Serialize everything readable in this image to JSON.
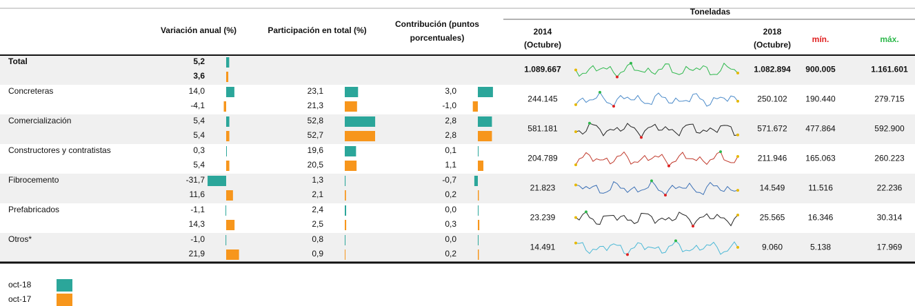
{
  "header": {
    "variacion": "Variación anual (%)",
    "participacion": "Participación en total (%)",
    "contribucion_1": "Contribución (puntos",
    "contribucion_2": "porcentuales)",
    "toneladas": "Toneladas",
    "y2014": "2014",
    "y2014_sub": "(Octubre)",
    "y2018": "2018",
    "y2018_sub": "(Octubre)",
    "min": "mín.",
    "max": "máx."
  },
  "colors": [
    "#2ba69a",
    "#f7961c"
  ],
  "legend": [
    "oct-18",
    "oct-17"
  ],
  "rows": [
    {
      "name": "Total",
      "variacion": {
        "values": [
          5.2,
          3.6
        ],
        "value_labels": [
          "5,2",
          "3,6"
        ]
      },
      "t2014": "1.089.667",
      "t2018": "1.082.894",
      "min": "900.005",
      "max": "1.161.601",
      "spark_color": "#2db84b"
    },
    {
      "name": "Concreteras",
      "variacion": {
        "values": [
          14.0,
          -4.1
        ],
        "value_labels": [
          "14,0",
          "-4,1"
        ]
      },
      "participacion": {
        "values": [
          23.1,
          21.3
        ],
        "value_labels": [
          "23,1",
          "21,3"
        ]
      },
      "contribucion": {
        "values": [
          3.0,
          -1.0
        ],
        "value_labels": [
          "3,0",
          "-1,0"
        ]
      },
      "t2014": "244.145",
      "t2018": "250.102",
      "min": "190.440",
      "max": "279.715",
      "spark_color": "#4a8ac9"
    },
    {
      "name": "Comercialización",
      "variacion": {
        "values": [
          5.4,
          5.4
        ],
        "value_labels": [
          "5,4",
          "5,4"
        ]
      },
      "participacion": {
        "values": [
          52.8,
          52.7
        ],
        "value_labels": [
          "52,8",
          "52,7"
        ]
      },
      "contribucion": {
        "values": [
          2.8,
          2.8
        ],
        "value_labels": [
          "2,8",
          "2,8"
        ]
      },
      "t2014": "581.181",
      "t2018": "571.672",
      "min": "477.864",
      "max": "592.900",
      "spark_color": "#222222"
    },
    {
      "name": "Constructores y contratistas",
      "variacion": {
        "values": [
          0.3,
          5.4
        ],
        "value_labels": [
          "0,3",
          "5,4"
        ]
      },
      "participacion": {
        "values": [
          19.6,
          20.5
        ],
        "value_labels": [
          "19,6",
          "20,5"
        ]
      },
      "contribucion": {
        "values": [
          0.1,
          1.1
        ],
        "value_labels": [
          "0,1",
          "1,1"
        ]
      },
      "t2014": "204.789",
      "t2018": "211.946",
      "min": "165.063",
      "max": "260.223",
      "spark_color": "#c0392b"
    },
    {
      "name": "Fibrocemento",
      "variacion": {
        "values": [
          -31.7,
          11.6
        ],
        "value_labels": [
          "-31,7",
          "11,6"
        ]
      },
      "participacion": {
        "values": [
          1.3,
          2.1
        ],
        "value_labels": [
          "1,3",
          "2,1"
        ]
      },
      "contribucion": {
        "values": [
          -0.7,
          0.2
        ],
        "value_labels": [
          "-0,7",
          "0,2"
        ]
      },
      "t2014": "21.823",
      "t2018": "14.549",
      "min": "11.516",
      "max": "22.236",
      "spark_color": "#3a6fb5"
    },
    {
      "name": "Prefabricados",
      "variacion": {
        "values": [
          -1.1,
          14.3
        ],
        "value_labels": [
          "-1,1",
          "14,3"
        ]
      },
      "participacion": {
        "values": [
          2.4,
          2.5
        ],
        "value_labels": [
          "2,4",
          "2,5"
        ]
      },
      "contribucion": {
        "values": [
          0.0,
          0.3
        ],
        "value_labels": [
          "0,0",
          "0,3"
        ]
      },
      "t2014": "23.239",
      "t2018": "25.565",
      "min": "16.346",
      "max": "30.314",
      "spark_color": "#222222"
    },
    {
      "name": "Otros*",
      "variacion": {
        "values": [
          -1.0,
          21.9
        ],
        "value_labels": [
          "-1,0",
          "21,9"
        ]
      },
      "participacion": {
        "values": [
          0.8,
          0.9
        ],
        "value_labels": [
          "0,8",
          "0,9"
        ]
      },
      "contribucion": {
        "values": [
          0.0,
          0.2
        ],
        "value_labels": [
          "0,0",
          "0,2"
        ]
      },
      "t2014": "14.491",
      "t2018": "9.060",
      "min": "5.138",
      "max": "17.969",
      "spark_color": "#4ab8d6"
    }
  ]
}
